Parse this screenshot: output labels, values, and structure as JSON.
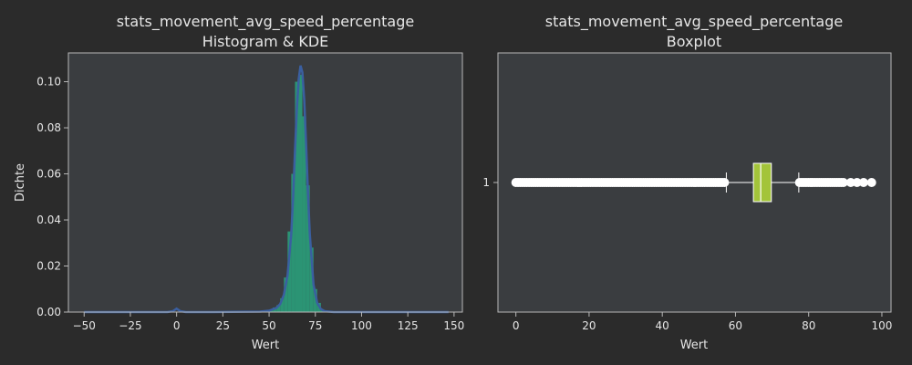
{
  "colors": {
    "figure_bg": "#2b2b2b",
    "axes_bg": "#3a3d40",
    "spine": "#b8b8b8",
    "text": "#e6e6e6",
    "hist_fill": "#2a9d7a",
    "kde_line": "#3a5fa0",
    "box_fill": "#a3c43a",
    "flier": "#ffffff"
  },
  "chart_data": [
    {
      "type": "histogram",
      "title_line1": "stats_movement_avg_speed_percentage",
      "title_line2": "Histogram & KDE",
      "xlabel": "Wert",
      "ylabel": "Dichte",
      "xlim": [
        -58.5,
        154.5
      ],
      "ylim": [
        0,
        0.1125
      ],
      "x_ticks": [
        -50,
        -25,
        0,
        25,
        50,
        75,
        100,
        125,
        150
      ],
      "x_tick_labels": [
        "−50",
        "−25",
        "0",
        "25",
        "50",
        "75",
        "100",
        "125",
        "150"
      ],
      "y_ticks": [
        0,
        0.02,
        0.04,
        0.06,
        0.08,
        0.1
      ],
      "y_tick_labels": [
        "0.00",
        "0.02",
        "0.04",
        "0.06",
        "0.08",
        "0.10"
      ],
      "grid": false,
      "histogram": {
        "bin_edges": [
          50,
          52,
          54,
          56,
          58,
          60,
          62,
          64,
          66,
          68,
          70,
          72,
          74,
          76,
          78,
          80
        ],
        "densities": [
          0.001,
          0.002,
          0.003,
          0.006,
          0.015,
          0.035,
          0.06,
          0.1,
          0.103,
          0.085,
          0.055,
          0.028,
          0.01,
          0.004,
          0.001
        ]
      },
      "kde": {
        "x": [
          -50,
          -20,
          -5,
          -2,
          0,
          2,
          5,
          20,
          45,
          50,
          54,
          56,
          58,
          60,
          62,
          63,
          64,
          65,
          66,
          67,
          68,
          69,
          70,
          71,
          72,
          74,
          76,
          78,
          80,
          85,
          100,
          125,
          147
        ],
        "y": [
          0,
          0,
          0,
          0.0004,
          0.0015,
          0.0004,
          0,
          0,
          0.0002,
          0.0006,
          0.0018,
          0.0035,
          0.0075,
          0.016,
          0.034,
          0.05,
          0.07,
          0.088,
          0.101,
          0.107,
          0.104,
          0.092,
          0.073,
          0.052,
          0.034,
          0.012,
          0.004,
          0.0013,
          0.0004,
          0,
          0,
          0,
          0
        ]
      }
    },
    {
      "type": "boxplot",
      "title_line1": "stats_movement_avg_speed_percentage",
      "title_line2": "Boxplot",
      "xlabel": "Wert",
      "xlim": [
        -4.9,
        102.5
      ],
      "x_ticks": [
        0,
        20,
        40,
        60,
        80,
        100
      ],
      "x_tick_labels": [
        "0",
        "20",
        "40",
        "60",
        "80",
        "100"
      ],
      "y_tick_labels": [
        "1"
      ],
      "orientation": "horizontal",
      "box": {
        "category": "1",
        "q1": 64.9,
        "median": 66.9,
        "q3": 69.8,
        "whisker_low": 57.5,
        "whisker_high": 77.3,
        "fliers_low_range": [
          0,
          57.5
        ],
        "fliers_high_range": [
          77.3,
          97.2
        ]
      }
    }
  ]
}
